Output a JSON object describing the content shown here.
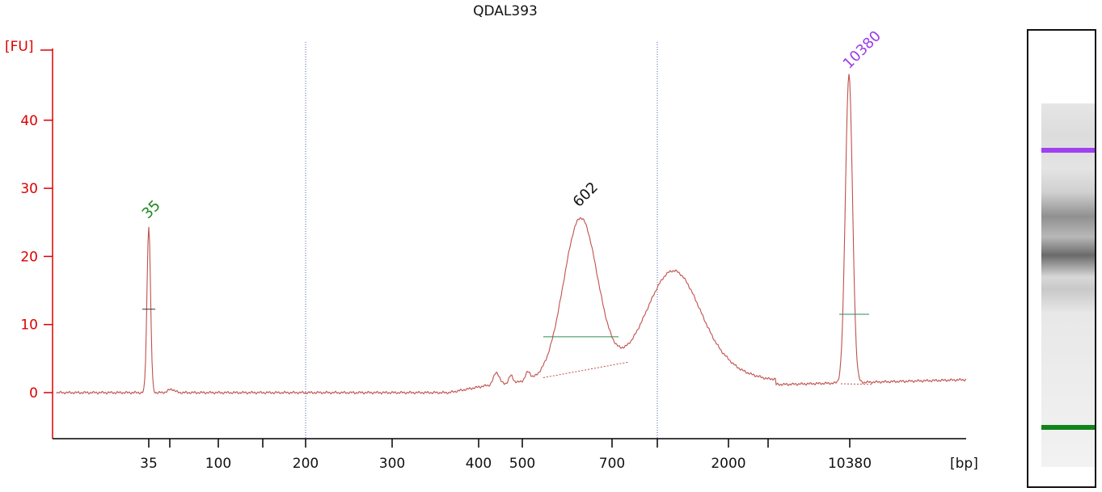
{
  "chart_data": {
    "type": "line",
    "title": "QDAL393",
    "ylabel": "[FU]",
    "xlabel": "[bp]",
    "ylim": [
      -6.5,
      51
    ],
    "yticks": [
      0,
      10,
      20,
      30,
      40
    ],
    "xticks": [
      "35",
      "",
      "100",
      "",
      "200",
      "300",
      "400",
      "500",
      "700",
      "",
      "2000",
      "",
      "10380"
    ],
    "peaks": [
      {
        "label": "35",
        "size_bp": 35,
        "height_fu": 24.5,
        "color": "#1a8a1a"
      },
      {
        "label": "602",
        "size_bp": 602,
        "height_fu": 26.2,
        "color": "#111111"
      },
      {
        "label": "10380",
        "size_bp": 10380,
        "height_fu": 46.5,
        "color": "#9b3de8"
      }
    ],
    "broad_peak": {
      "height_fu": 18.0
    },
    "colors": {
      "axis": "#dd0000",
      "trace": "#c0504d",
      "fwhm_line": "#2e8b57",
      "gridline": "#4a5fa8"
    }
  },
  "gel": {
    "marker_upper_color": "#a040f0",
    "marker_lower_color": "#11841a"
  }
}
